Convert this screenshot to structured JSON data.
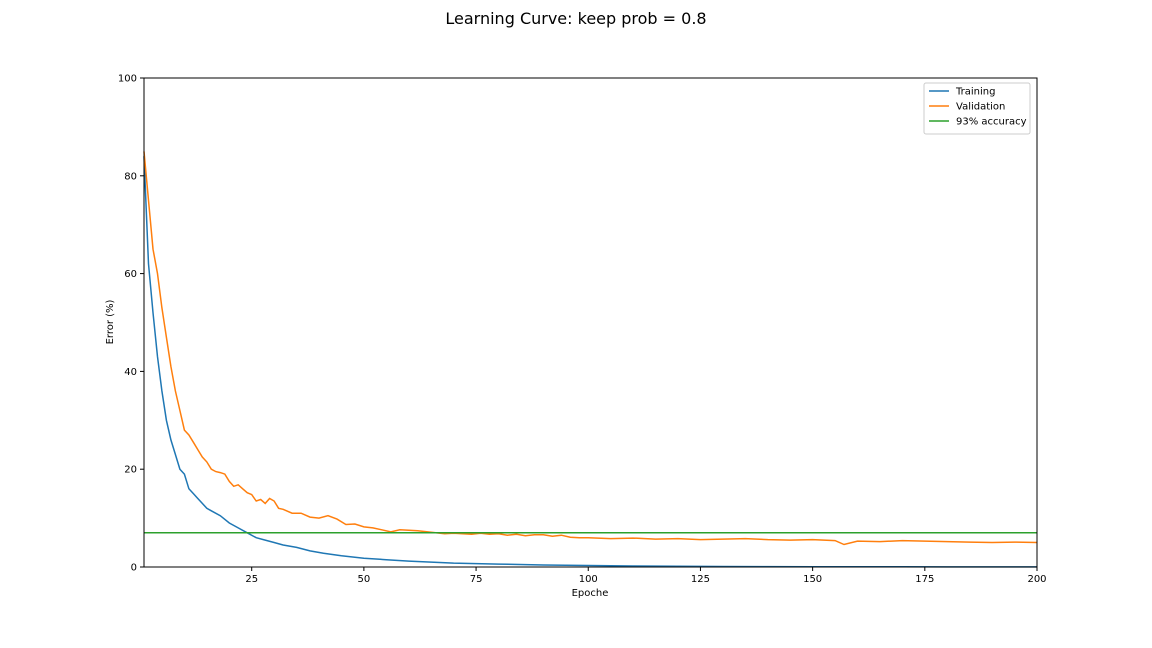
{
  "chart_data": {
    "type": "line",
    "title": "Learning Curve: keep prob = 0.8",
    "xlabel": "Epoche",
    "ylabel": "Error (%)",
    "xlim": [
      1,
      200
    ],
    "ylim": [
      0,
      100
    ],
    "xticks": [
      25,
      50,
      75,
      100,
      125,
      150,
      175,
      200
    ],
    "yticks": [
      0,
      20,
      40,
      60,
      80,
      100
    ],
    "grid": false,
    "legend_position": "top-right",
    "series": [
      {
        "name": "Training",
        "color": "#1f77b4",
        "x": [
          1,
          2,
          3,
          4,
          5,
          6,
          7,
          8,
          9,
          10,
          11,
          12,
          13,
          14,
          15,
          16,
          18,
          20,
          22,
          24,
          26,
          28,
          30,
          32,
          35,
          38,
          41,
          45,
          50,
          55,
          60,
          65,
          70,
          75,
          80,
          90,
          100,
          110,
          120,
          130,
          140,
          150,
          160,
          170,
          180,
          190,
          200
        ],
        "values": [
          84,
          62,
          52,
          43,
          36,
          30,
          26,
          23,
          20,
          19,
          16,
          15,
          14,
          13,
          12,
          11.5,
          10.5,
          9,
          8,
          7,
          6,
          5.5,
          5,
          4.5,
          4,
          3.3,
          2.8,
          2.3,
          1.8,
          1.5,
          1.2,
          1.0,
          0.8,
          0.7,
          0.6,
          0.4,
          0.3,
          0.2,
          0.15,
          0.1,
          0.08,
          0.06,
          0.05,
          0.04,
          0.03,
          0.02,
          0.02
        ]
      },
      {
        "name": "Validation",
        "color": "#ff7f0e",
        "x": [
          1,
          2,
          3,
          4,
          5,
          6,
          7,
          8,
          9,
          10,
          11,
          12,
          13,
          14,
          15,
          16,
          17,
          18,
          19,
          20,
          21,
          22,
          23,
          24,
          25,
          26,
          27,
          28,
          29,
          30,
          31,
          32,
          34,
          36,
          38,
          40,
          42,
          44,
          46,
          48,
          50,
          52,
          54,
          56,
          58,
          60,
          62,
          64,
          66,
          68,
          70,
          72,
          74,
          76,
          78,
          80,
          82,
          84,
          86,
          88,
          90,
          92,
          94,
          96,
          98,
          100,
          105,
          110,
          115,
          120,
          125,
          130,
          135,
          140,
          145,
          150,
          155,
          157,
          160,
          165,
          170,
          175,
          180,
          185,
          190,
          195,
          200
        ],
        "values": [
          85,
          75,
          65,
          60,
          53,
          47,
          41,
          36,
          32,
          28,
          27,
          25.5,
          24,
          22.5,
          21.5,
          20,
          19.5,
          19.3,
          19,
          17.5,
          16.5,
          16.8,
          16,
          15.2,
          14.8,
          13.5,
          13.8,
          13,
          14,
          13.5,
          12,
          11.8,
          11,
          11,
          10.2,
          10,
          10.5,
          9.8,
          8.7,
          8.8,
          8.2,
          8,
          7.6,
          7.2,
          7.6,
          7.5,
          7.4,
          7.2,
          7,
          6.8,
          6.9,
          6.8,
          6.7,
          6.9,
          6.7,
          6.8,
          6.5,
          6.7,
          6.4,
          6.6,
          6.6,
          6.3,
          6.5,
          6.1,
          6,
          6,
          5.8,
          5.9,
          5.7,
          5.8,
          5.6,
          5.7,
          5.8,
          5.6,
          5.5,
          5.6,
          5.4,
          4.6,
          5.3,
          5.2,
          5.4,
          5.3,
          5.2,
          5.1,
          5,
          5.1,
          5.0
        ]
      },
      {
        "name": "93% accuracy",
        "color": "#2ca02c",
        "x": [
          1,
          200
        ],
        "values": [
          7,
          7
        ]
      }
    ]
  }
}
